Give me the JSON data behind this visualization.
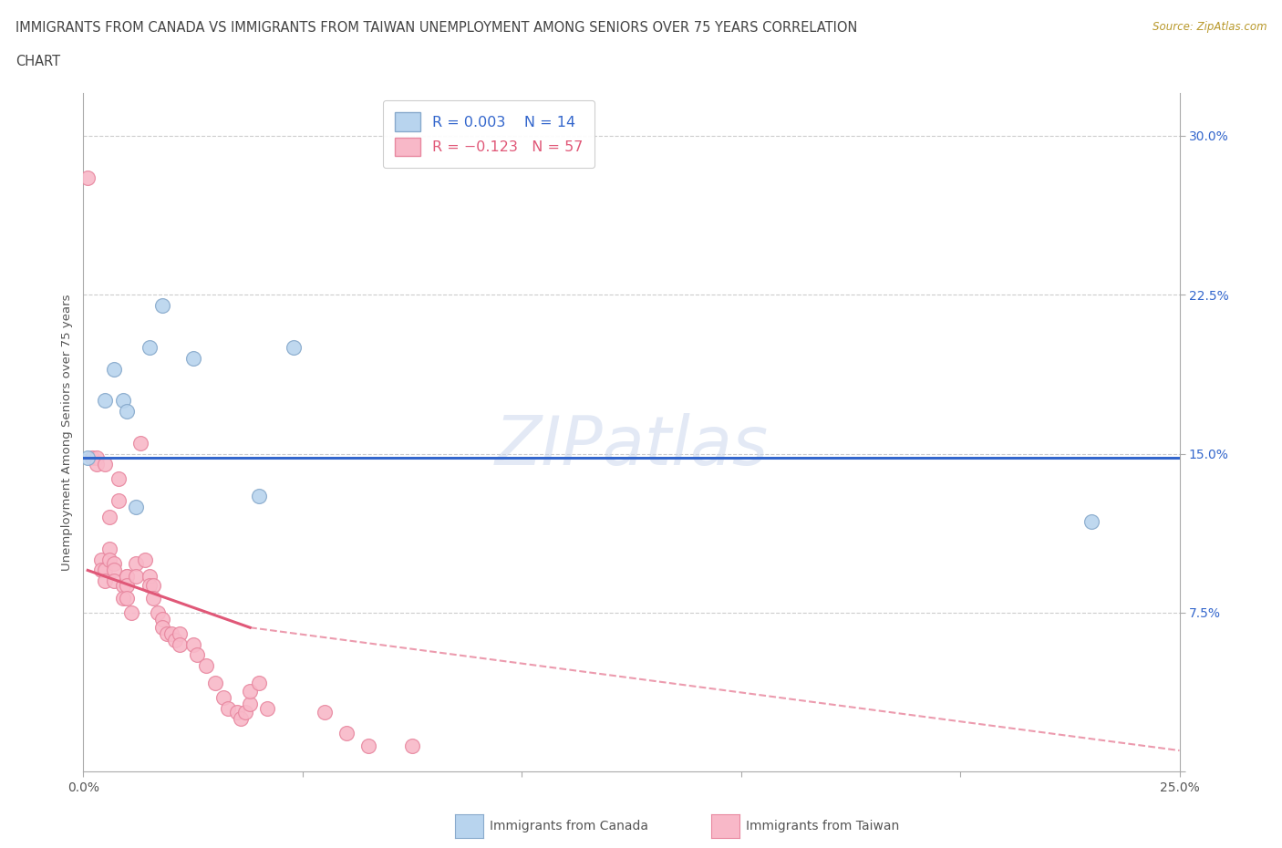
{
  "title_line1": "IMMIGRANTS FROM CANADA VS IMMIGRANTS FROM TAIWAN UNEMPLOYMENT AMONG SENIORS OVER 75 YEARS CORRELATION",
  "title_line2": "CHART",
  "source": "Source: ZipAtlas.com",
  "ylabel": "Unemployment Among Seniors over 75 years",
  "xlim": [
    0.0,
    0.25
  ],
  "ylim": [
    0.0,
    0.32
  ],
  "ytick_values": [
    0.0,
    0.075,
    0.15,
    0.225,
    0.3
  ],
  "ytick_labels": [
    "",
    "7.5%",
    "15.0%",
    "22.5%",
    "30.0%"
  ],
  "xtick_values": [
    0.0,
    0.05,
    0.1,
    0.15,
    0.2,
    0.25
  ],
  "xtick_labels": [
    "0.0%",
    "",
    "",
    "",
    "",
    "25.0%"
  ],
  "grid_color": "#cccccc",
  "canada_color": "#b8d4ee",
  "taiwan_color": "#f8b8c8",
  "canada_edge": "#88aacc",
  "taiwan_edge": "#e888a0",
  "canada_line_color": "#3366cc",
  "taiwan_line_color": "#e05878",
  "watermark": "ZIPatlas",
  "canada_line_y": 0.148,
  "taiwan_line_start_x": 0.001,
  "taiwan_line_start_y": 0.095,
  "taiwan_line_solid_end_x": 0.038,
  "taiwan_line_solid_end_y": 0.068,
  "taiwan_line_dash_end_x": 0.25,
  "taiwan_line_dash_end_y": 0.01,
  "canada_x": [
    0.001,
    0.005,
    0.007,
    0.009,
    0.01,
    0.012,
    0.015,
    0.018,
    0.025,
    0.04,
    0.048,
    0.23
  ],
  "canada_y": [
    0.148,
    0.175,
    0.19,
    0.175,
    0.17,
    0.125,
    0.2,
    0.22,
    0.195,
    0.13,
    0.2,
    0.118
  ],
  "taiwan_x": [
    0.001,
    0.002,
    0.003,
    0.003,
    0.004,
    0.004,
    0.005,
    0.005,
    0.005,
    0.006,
    0.006,
    0.006,
    0.007,
    0.007,
    0.007,
    0.008,
    0.008,
    0.009,
    0.009,
    0.01,
    0.01,
    0.01,
    0.01,
    0.011,
    0.012,
    0.012,
    0.013,
    0.014,
    0.015,
    0.015,
    0.016,
    0.016,
    0.017,
    0.018,
    0.018,
    0.019,
    0.02,
    0.021,
    0.022,
    0.022,
    0.025,
    0.026,
    0.028,
    0.03,
    0.032,
    0.033,
    0.035,
    0.036,
    0.037,
    0.038,
    0.038,
    0.04,
    0.042,
    0.055,
    0.06,
    0.065,
    0.075
  ],
  "taiwan_y": [
    0.28,
    0.148,
    0.148,
    0.145,
    0.1,
    0.095,
    0.145,
    0.095,
    0.09,
    0.12,
    0.105,
    0.1,
    0.098,
    0.095,
    0.09,
    0.138,
    0.128,
    0.088,
    0.082,
    0.092,
    0.092,
    0.088,
    0.082,
    0.075,
    0.098,
    0.092,
    0.155,
    0.1,
    0.092,
    0.088,
    0.088,
    0.082,
    0.075,
    0.072,
    0.068,
    0.065,
    0.065,
    0.062,
    0.065,
    0.06,
    0.06,
    0.055,
    0.05,
    0.042,
    0.035,
    0.03,
    0.028,
    0.025,
    0.028,
    0.032,
    0.038,
    0.042,
    0.03,
    0.028,
    0.018,
    0.012,
    0.012
  ]
}
